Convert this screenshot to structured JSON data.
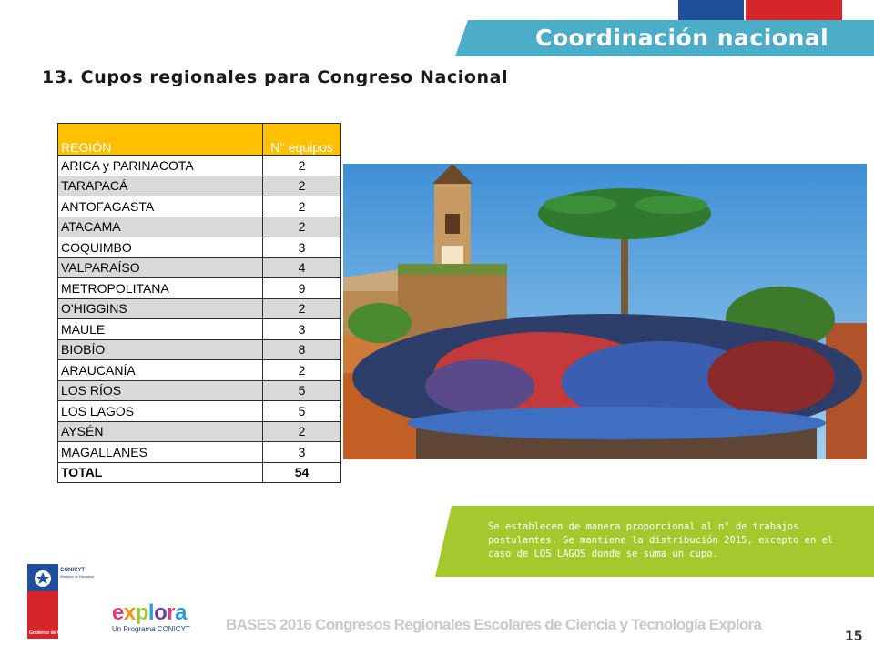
{
  "header": {
    "title": "Coordinación nacional"
  },
  "subtitle": "13. Cupos regionales para Congreso Nacional",
  "table": {
    "col_region": "REGIÓN",
    "col_count": "N° equipos",
    "rows": [
      {
        "region": "ARICA y PARINACOTA",
        "count": "2"
      },
      {
        "region": "TARAPACÁ",
        "count": "2"
      },
      {
        "region": "ANTOFAGASTA",
        "count": "2"
      },
      {
        "region": "ATACAMA",
        "count": "2"
      },
      {
        "region": "COQUIMBO",
        "count": "3"
      },
      {
        "region": "VALPARAÍSO",
        "count": "4"
      },
      {
        "region": "METROPOLITANA",
        "count": "9"
      },
      {
        "region": "O'HIGGINS",
        "count": "2"
      },
      {
        "region": "MAULE",
        "count": "3"
      },
      {
        "region": "BIOBÍO",
        "count": "8"
      },
      {
        "region": "ARAUCANÍA",
        "count": "2"
      },
      {
        "region": "LOS RÍOS",
        "count": "5"
      },
      {
        "region": "LOS LAGOS",
        "count": "5"
      },
      {
        "region": "AYSÉN",
        "count": "2"
      },
      {
        "region": "MAGALLANES",
        "count": "3"
      }
    ],
    "total_label": "TOTAL",
    "total_value": "54"
  },
  "note": "Se establecen de manera proporcional al n° de trabajos postulantes. Se mantiene la distribución 2015, excepto en el caso de LOS LAGOS donde se suma un cupo.",
  "logos": {
    "gov_line1": "CONICYT",
    "gov_line2": "Ministerio de Educación",
    "gov_bottom": "Gobierno de Chile",
    "explora_word": "explora",
    "explora_sub": "Un Programa CONICYT"
  },
  "footer": "BASES 2016 Congresos Regionales Escolares de Ciencia y Tecnología Explora",
  "page_number": "15",
  "colors": {
    "header_banner": "#4badc8",
    "table_header": "#ffc000",
    "note_box": "#a4c92f",
    "flag_blue": "#1f4e9a",
    "flag_red": "#d6262a"
  }
}
